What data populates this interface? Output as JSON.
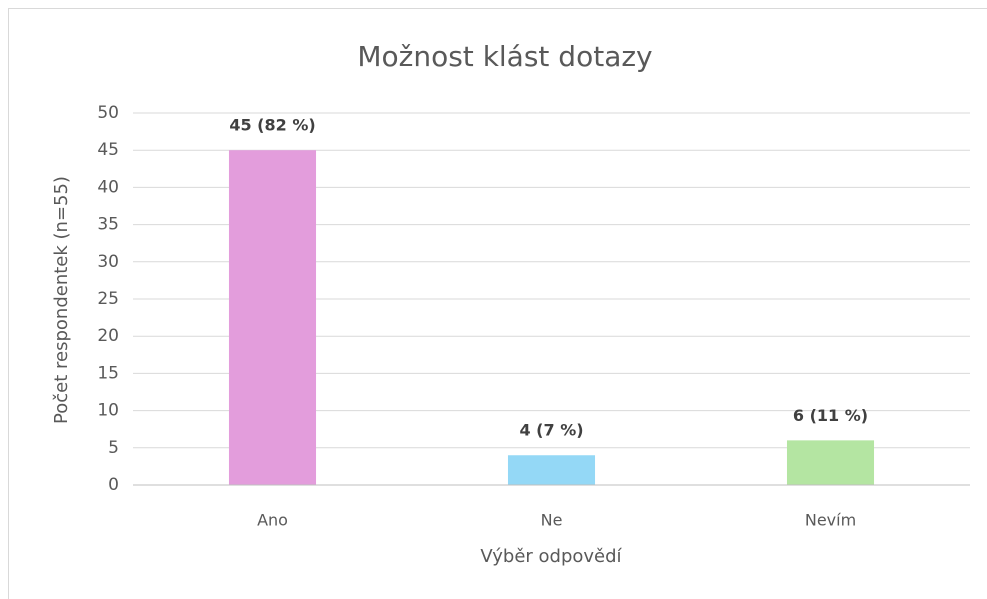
{
  "chart_data": {
    "type": "bar",
    "title": "Možnost klást dotazy",
    "x_label": "Výběr odpovědí",
    "y_label": "Počet respondentek (n=55)",
    "categories": [
      "Ano",
      "Ne",
      "Nevím"
    ],
    "values": [
      45,
      4,
      6
    ],
    "value_labels": [
      "45 (82 %)",
      "4 (7 %)",
      "6 (11 %)"
    ],
    "colors": [
      "#e39ddc",
      "#94d8f6",
      "#b4e5a2"
    ],
    "ylim": [
      0,
      50
    ],
    "yticks": [
      0,
      5,
      10,
      15,
      20,
      25,
      30,
      35,
      40,
      45,
      50
    ],
    "grid": true
  }
}
